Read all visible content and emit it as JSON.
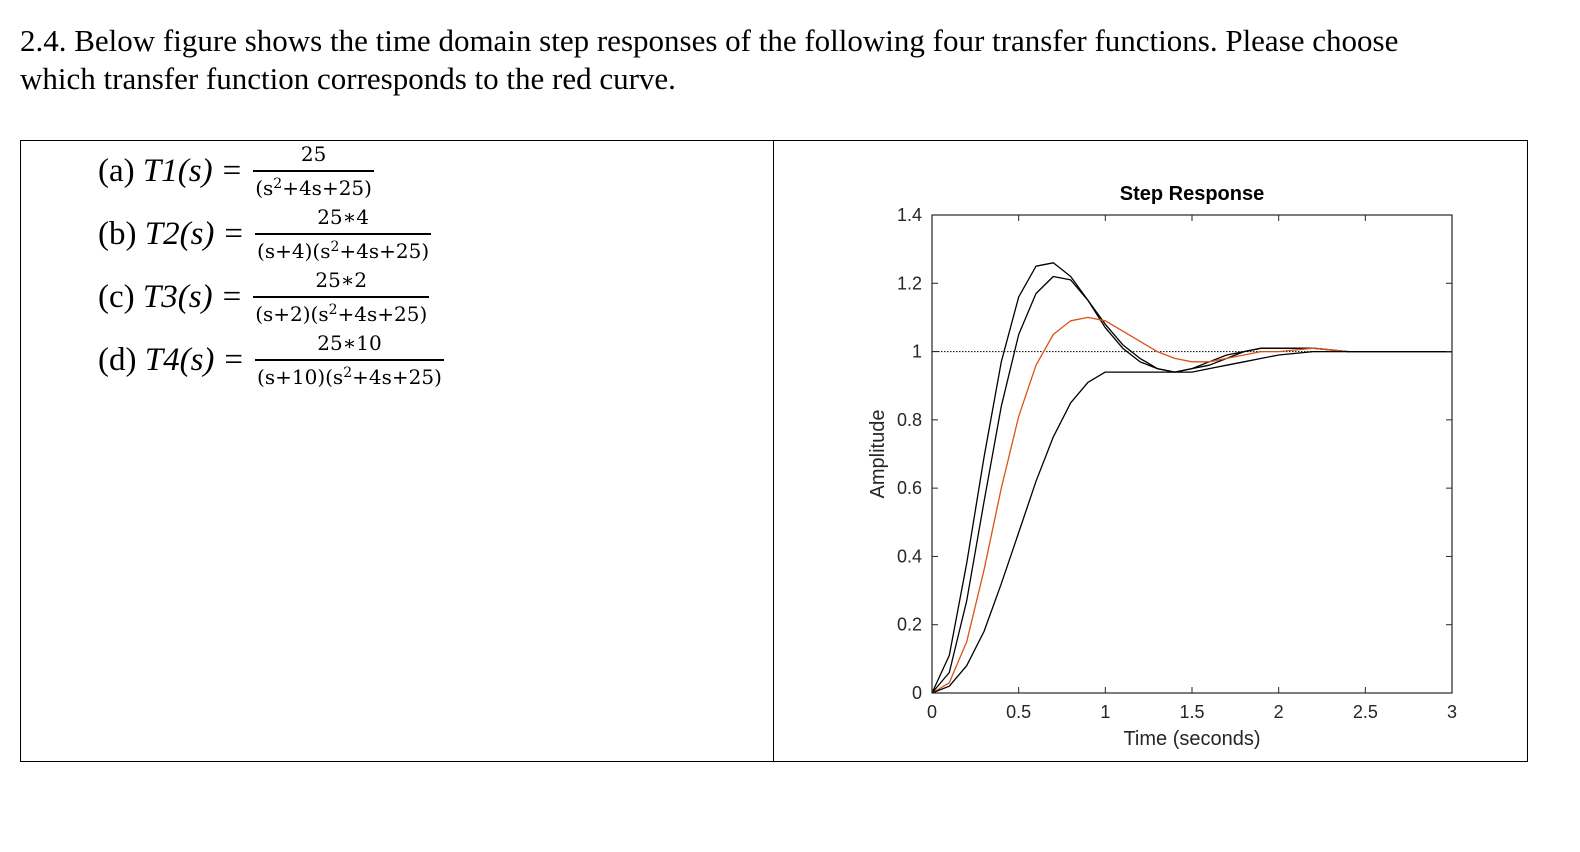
{
  "question": {
    "line1": "2.4. Below figure shows the time domain step responses of the following four transfer functions. Please choose",
    "line2": "which transfer function corresponds to the red curve."
  },
  "transfer_functions": [
    {
      "option": "(a)",
      "name": "T1",
      "var": "(s)",
      "eq": "=",
      "numerator": "25",
      "den_pre": "(s",
      "den_exp": "2",
      "den_post": "+4s+25)"
    },
    {
      "option": "(b)",
      "name": "T2",
      "var": "(s)",
      "eq": "=",
      "numerator": "25∗4",
      "den_pre": "(s+4)(s",
      "den_exp": "2",
      "den_post": "+4s+25)"
    },
    {
      "option": "(c)",
      "name": "T3",
      "var": "(s)",
      "eq": "=",
      "numerator": "25∗2",
      "den_pre": "(s+2)(s",
      "den_exp": "2",
      "den_post": "+4s+25)"
    },
    {
      "option": "(d)",
      "name": "T4",
      "var": "(s)",
      "eq": "=",
      "numerator": "25∗10",
      "den_pre": "(s+10)(s",
      "den_exp": "2",
      "den_post": "+4s+25)"
    }
  ],
  "colors": {
    "red_curve": "#d95319",
    "black_curve": "#000000"
  },
  "chart_data": {
    "type": "line",
    "title": "Step Response",
    "xlabel": "Time (seconds)",
    "ylabel": "Amplitude",
    "xlim": [
      0,
      3
    ],
    "ylim": [
      0,
      1.4
    ],
    "xticks": [
      "0",
      "0.5",
      "1",
      "1.5",
      "2",
      "2.5",
      "3"
    ],
    "yticks": [
      "0",
      "0.2",
      "0.4",
      "0.6",
      "0.8",
      "1",
      "1.2",
      "1.4"
    ],
    "reference_line": 1,
    "grid": false,
    "series": [
      {
        "color": "#000000",
        "x": [
          0,
          0.1,
          0.2,
          0.3,
          0.4,
          0.5,
          0.6,
          0.7,
          0.8,
          0.9,
          1.0,
          1.1,
          1.2,
          1.3,
          1.4,
          1.5,
          1.6,
          1.7,
          1.8,
          1.9,
          2.0,
          2.2,
          2.4,
          2.6,
          2.8,
          3.0
        ],
        "y": [
          0,
          0.11,
          0.38,
          0.69,
          0.97,
          1.16,
          1.25,
          1.26,
          1.22,
          1.15,
          1.07,
          1.01,
          0.97,
          0.95,
          0.94,
          0.95,
          0.97,
          0.99,
          1.0,
          1.01,
          1.01,
          1.01,
          1.0,
          1.0,
          1.0,
          1.0
        ]
      },
      {
        "color": "#000000",
        "x": [
          0,
          0.1,
          0.2,
          0.3,
          0.4,
          0.5,
          0.6,
          0.7,
          0.8,
          0.9,
          1.0,
          1.1,
          1.2,
          1.3,
          1.4,
          1.5,
          1.6,
          1.7,
          1.8,
          1.9,
          2.0,
          2.2,
          2.4,
          2.6,
          2.8,
          3.0
        ],
        "y": [
          0,
          0.06,
          0.27,
          0.56,
          0.84,
          1.05,
          1.17,
          1.22,
          1.21,
          1.15,
          1.08,
          1.02,
          0.98,
          0.95,
          0.94,
          0.95,
          0.96,
          0.98,
          1.0,
          1.01,
          1.01,
          1.01,
          1.0,
          1.0,
          1.0,
          1.0
        ]
      },
      {
        "color": "#d95319",
        "x": [
          0,
          0.1,
          0.2,
          0.3,
          0.4,
          0.5,
          0.6,
          0.7,
          0.8,
          0.9,
          1.0,
          1.1,
          1.2,
          1.3,
          1.4,
          1.5,
          1.6,
          1.7,
          1.8,
          1.9,
          2.0,
          2.2,
          2.4,
          2.6,
          2.8,
          3.0
        ],
        "y": [
          0,
          0.03,
          0.15,
          0.36,
          0.6,
          0.81,
          0.96,
          1.05,
          1.09,
          1.1,
          1.09,
          1.06,
          1.03,
          1.0,
          0.98,
          0.97,
          0.97,
          0.98,
          0.99,
          1.0,
          1.0,
          1.01,
          1.0,
          1.0,
          1.0,
          1.0
        ]
      },
      {
        "color": "#000000",
        "x": [
          0,
          0.1,
          0.2,
          0.3,
          0.4,
          0.5,
          0.6,
          0.7,
          0.8,
          0.9,
          1.0,
          1.1,
          1.2,
          1.3,
          1.4,
          1.5,
          1.6,
          1.7,
          1.8,
          1.9,
          2.0,
          2.2,
          2.4,
          2.6,
          2.8,
          3.0
        ],
        "y": [
          0,
          0.02,
          0.08,
          0.18,
          0.32,
          0.47,
          0.62,
          0.75,
          0.85,
          0.91,
          0.94,
          0.94,
          0.94,
          0.94,
          0.94,
          0.94,
          0.95,
          0.96,
          0.97,
          0.98,
          0.99,
          1.0,
          1.0,
          1.0,
          1.0,
          1.0
        ]
      }
    ]
  }
}
